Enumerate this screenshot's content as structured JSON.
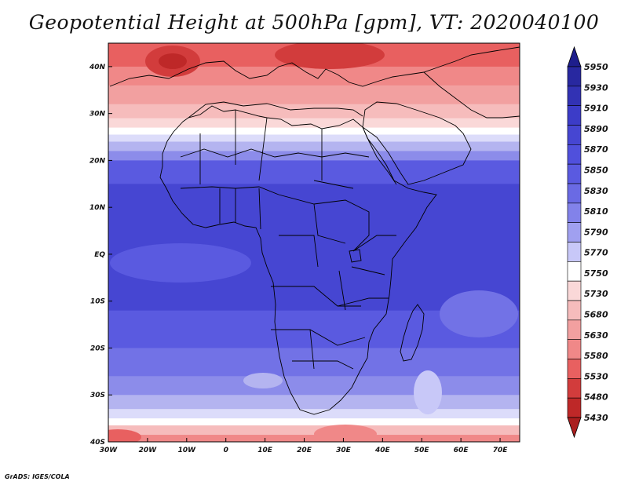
{
  "title": "Geopotential Height at 500hPa [gpm], VT: 2020040100",
  "footer": "GrADS: IGES/COLA",
  "map": {
    "lon_range": [
      -30,
      75
    ],
    "lat_range": [
      -40,
      45
    ],
    "lat_ticks": [
      {
        "value": 40,
        "label": "40N"
      },
      {
        "value": 30,
        "label": "30N"
      },
      {
        "value": 20,
        "label": "20N"
      },
      {
        "value": 10,
        "label": "10N"
      },
      {
        "value": 0,
        "label": "EQ"
      },
      {
        "value": -10,
        "label": "10S"
      },
      {
        "value": -20,
        "label": "20S"
      },
      {
        "value": -30,
        "label": "30S"
      },
      {
        "value": -40,
        "label": "40S"
      }
    ],
    "lon_ticks": [
      {
        "value": -30,
        "label": "30W"
      },
      {
        "value": -20,
        "label": "20W"
      },
      {
        "value": -10,
        "label": "10W"
      },
      {
        "value": 0,
        "label": "0"
      },
      {
        "value": 10,
        "label": "10E"
      },
      {
        "value": 20,
        "label": "20E"
      },
      {
        "value": 30,
        "label": "30E"
      },
      {
        "value": 40,
        "label": "40E"
      },
      {
        "value": 50,
        "label": "50E"
      },
      {
        "value": 60,
        "label": "60E"
      },
      {
        "value": 70,
        "label": "70E"
      }
    ],
    "field_bands": [
      {
        "lat_top": 45,
        "lat_bottom": 40,
        "color": "#e86060"
      },
      {
        "lat_top": 40,
        "lat_bottom": 36,
        "color": "#f08888"
      },
      {
        "lat_top": 36,
        "lat_bottom": 32,
        "color": "#f2a0a0"
      },
      {
        "lat_top": 32,
        "lat_bottom": 29,
        "color": "#f6bcbc"
      },
      {
        "lat_top": 29,
        "lat_bottom": 27,
        "color": "#fad8d8"
      },
      {
        "lat_top": 27,
        "lat_bottom": 25.5,
        "color": "#ffffff"
      },
      {
        "lat_top": 25.5,
        "lat_bottom": 24,
        "color": "#dcdcfa"
      },
      {
        "lat_top": 24,
        "lat_bottom": 22,
        "color": "#b4b4f0"
      },
      {
        "lat_top": 22,
        "lat_bottom": 20,
        "color": "#8c8cea"
      },
      {
        "lat_top": 20,
        "lat_bottom": 15,
        "color": "#5a5ae0"
      },
      {
        "lat_top": 15,
        "lat_bottom": -12,
        "color": "#4646d2"
      },
      {
        "lat_top": -12,
        "lat_bottom": -20,
        "color": "#5a5ae0"
      },
      {
        "lat_top": -20,
        "lat_bottom": -26,
        "color": "#7272e6"
      },
      {
        "lat_top": -26,
        "lat_bottom": -30,
        "color": "#8c8cea"
      },
      {
        "lat_top": -30,
        "lat_bottom": -33,
        "color": "#b4b4f0"
      },
      {
        "lat_top": -33,
        "lat_bottom": -35,
        "color": "#dcdcfa"
      },
      {
        "lat_top": -35,
        "lat_bottom": -36.5,
        "color": "#ffffff"
      },
      {
        "lat_top": -36.5,
        "lat_bottom": -38.5,
        "color": "#f6bcbc"
      },
      {
        "lat_top": -38.5,
        "lat_bottom": -40,
        "color": "#f08888"
      }
    ]
  },
  "colorbar": {
    "labels": [
      "5950",
      "5930",
      "5910",
      "5890",
      "5870",
      "5850",
      "5830",
      "5810",
      "5790",
      "5770",
      "5750",
      "5730",
      "5680",
      "5630",
      "5580",
      "5530",
      "5480",
      "5430"
    ],
    "colors": [
      "#1e1e8c",
      "#2828a0",
      "#3232b4",
      "#3c3cc8",
      "#4646d2",
      "#5050dc",
      "#5a5ae0",
      "#6a6ae4",
      "#8282ea",
      "#a0a0f0",
      "#c8c8f8",
      "#ffffff",
      "#fad8d8",
      "#f6bcbc",
      "#f2a0a0",
      "#f08888",
      "#e86060",
      "#d23c3c",
      "#be2828",
      "#aa1e1e"
    ]
  }
}
